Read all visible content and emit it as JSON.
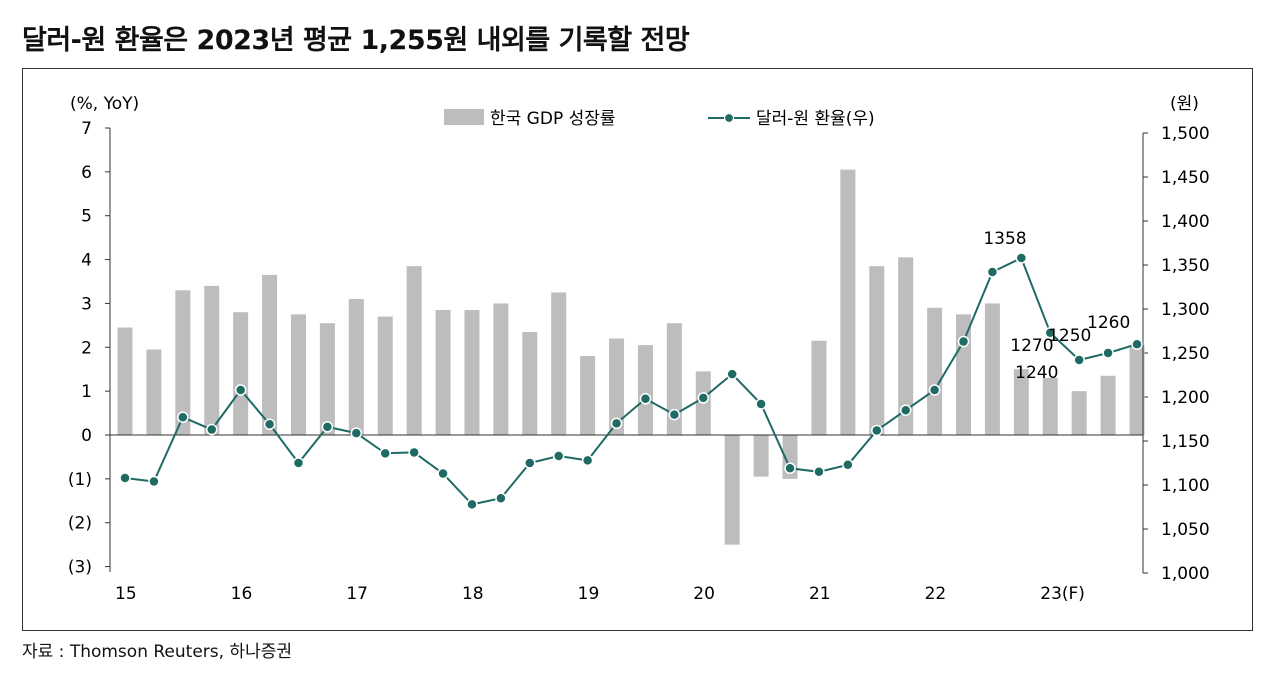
{
  "title": "달러-원 환율은 2023년 평균 1,255원 내외를 기록할 전망",
  "source": "자료 : Thomson Reuters, 하나증권",
  "chart_data": {
    "type": "bar+line",
    "left_axis": {
      "unit_label": "(%, YoY)",
      "range": [
        -3,
        7
      ],
      "tick_labels": [
        "(3)",
        "(2)",
        "(1)",
        "0",
        "1",
        "2",
        "3",
        "4",
        "5",
        "6",
        "7"
      ]
    },
    "right_axis": {
      "unit_label": "(원)",
      "range": [
        1000,
        1500
      ],
      "tick_labels": [
        "1,000",
        "1,050",
        "1,100",
        "1,150",
        "1,200",
        "1,250",
        "1,300",
        "1,350",
        "1,400",
        "1,450",
        "1,500"
      ]
    },
    "x_labels": [
      "15",
      "16",
      "17",
      "18",
      "19",
      "20",
      "21",
      "22",
      "23(F)"
    ],
    "legend": {
      "bar": "한국 GDP 성장률",
      "line": "달러-원 환율(우)"
    },
    "colors": {
      "bar": "#bdbdbd",
      "line": "#1f6b64",
      "marker": "#1f6b64",
      "marker_edge": "#ffffff"
    },
    "series": [
      {
        "name": "한국 GDP 성장률",
        "axis": "left",
        "values": [
          2.45,
          1.95,
          3.3,
          3.4,
          2.8,
          3.65,
          2.75,
          2.55,
          3.1,
          2.7,
          3.85,
          2.85,
          2.85,
          3.0,
          2.35,
          3.25,
          1.8,
          2.2,
          2.05,
          2.55,
          1.45,
          -2.5,
          -0.95,
          -1.0,
          2.15,
          6.05,
          3.85,
          4.05,
          2.9,
          2.75,
          3.0,
          1.5,
          1.3,
          1.0,
          1.35,
          2.05
        ]
      },
      {
        "name": "달러-원 환율(우)",
        "axis": "right",
        "values": [
          1108,
          1104,
          1177,
          1163,
          1208,
          1169,
          1125,
          1166,
          1159,
          1136,
          1137,
          1113,
          1078,
          1085,
          1125,
          1133,
          1128,
          1170,
          1198,
          1180,
          1199,
          1226,
          1192,
          1119,
          1115,
          1123,
          1162,
          1185,
          1208,
          1263,
          1342,
          1358,
          1273,
          1242,
          1250,
          1260
        ]
      }
    ],
    "annotations": [
      {
        "index": 31,
        "text": "1358"
      },
      {
        "index": 32,
        "text": "1270"
      },
      {
        "index": 33,
        "text": "1240"
      },
      {
        "index": 34,
        "text": "1250"
      },
      {
        "index": 35,
        "text": "1260"
      }
    ]
  }
}
